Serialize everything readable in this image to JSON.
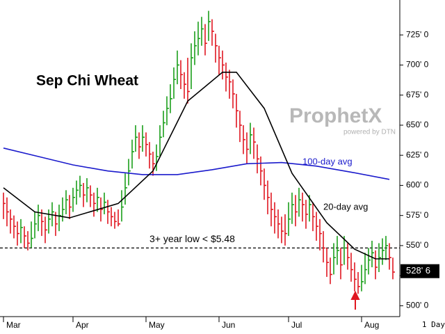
{
  "chart_data": {
    "type": "ohlc",
    "title": "Sep Chi Wheat",
    "xlim": [
      -1,
      114
    ],
    "xticks": [
      {
        "value": 0,
        "label": "Mar"
      },
      {
        "value": 20,
        "label": "Apr"
      },
      {
        "value": 41,
        "label": "May"
      },
      {
        "value": 62,
        "label": "Jun"
      },
      {
        "value": 82,
        "label": "Jul"
      },
      {
        "value": 103,
        "label": "Aug"
      }
    ],
    "ylim": [
      491,
      754
    ],
    "yticks": [
      {
        "value": 500,
        "label": "500' 0"
      },
      {
        "value": 525,
        "label": "525' 0"
      },
      {
        "value": 550,
        "label": "550' 0"
      },
      {
        "value": 575,
        "label": "575' 0"
      },
      {
        "value": 600,
        "label": "600' 0"
      },
      {
        "value": 625,
        "label": "625' 0"
      },
      {
        "value": 650,
        "label": "650' 0"
      },
      {
        "value": 675,
        "label": "675' 0"
      },
      {
        "value": 700,
        "label": "700' 0"
      },
      {
        "value": 725,
        "label": "725' 0"
      }
    ],
    "up_color": "#1a9e1a",
    "down_color": "#e01620",
    "high": [
      594,
      590,
      580,
      575,
      570,
      572,
      566,
      562,
      570,
      578,
      584,
      580,
      574,
      580,
      586,
      578,
      584,
      590,
      596,
      592,
      598,
      604,
      608,
      602,
      606,
      600,
      594,
      598,
      590,
      594,
      588,
      582,
      578,
      580,
      596,
      610,
      622,
      638,
      650,
      644,
      650,
      644,
      636,
      628,
      634,
      650,
      662,
      674,
      684,
      698,
      712,
      704,
      694,
      706,
      718,
      728,
      736,
      740,
      734,
      745,
      738,
      726,
      716,
      712,
      702,
      696,
      688,
      676,
      662,
      650,
      644,
      652,
      648,
      634,
      624,
      614,
      604,
      594,
      586,
      580,
      574,
      576,
      586,
      594,
      592,
      598,
      594,
      588,
      592,
      586,
      578,
      572,
      562,
      548,
      540,
      552,
      558,
      548,
      558,
      552,
      544,
      536,
      528,
      534,
      544,
      548,
      554,
      546,
      552,
      556,
      558,
      552,
      540
    ],
    "low": [
      572,
      566,
      560,
      556,
      550,
      552,
      548,
      546,
      548,
      556,
      562,
      558,
      552,
      560,
      566,
      558,
      562,
      570,
      576,
      572,
      578,
      584,
      590,
      582,
      586,
      582,
      574,
      578,
      570,
      576,
      568,
      566,
      564,
      566,
      570,
      584,
      600,
      614,
      628,
      622,
      628,
      624,
      614,
      608,
      612,
      624,
      640,
      650,
      660,
      672,
      684,
      680,
      672,
      668,
      680,
      700,
      708,
      716,
      708,
      720,
      716,
      702,
      692,
      688,
      678,
      672,
      664,
      648,
      636,
      626,
      618,
      626,
      622,
      610,
      600,
      588,
      576,
      566,
      560,
      556,
      552,
      550,
      558,
      568,
      566,
      574,
      570,
      564,
      570,
      562,
      554,
      546,
      536,
      524,
      518,
      526,
      534,
      522,
      534,
      530,
      520,
      512,
      510,
      512,
      518,
      526,
      532,
      522,
      528,
      534,
      538,
      530,
      522
    ],
    "close": [
      585,
      578,
      572,
      566,
      560,
      565,
      558,
      552,
      556,
      568,
      575,
      570,
      563,
      572,
      578,
      568,
      575,
      580,
      588,
      582,
      590,
      596,
      600,
      592,
      598,
      592,
      585,
      590,
      580,
      586,
      578,
      574,
      570,
      568,
      582,
      598,
      612,
      628,
      640,
      632,
      640,
      634,
      626,
      618,
      624,
      640,
      652,
      664,
      672,
      688,
      700,
      692,
      684,
      678,
      706,
      716,
      722,
      730,
      718,
      736,
      728,
      716,
      706,
      700,
      690,
      686,
      676,
      662,
      650,
      638,
      630,
      642,
      636,
      622,
      612,
      600,
      590,
      580,
      574,
      568,
      562,
      560,
      572,
      584,
      578,
      588,
      584,
      576,
      584,
      574,
      566,
      560,
      548,
      536,
      526,
      540,
      546,
      534,
      548,
      540,
      530,
      522,
      516,
      520,
      530,
      538,
      544,
      532,
      540,
      546,
      550,
      540,
      528
    ],
    "series": [
      {
        "name": "100-day avg",
        "color": "#1a1acc",
        "x": [
          0,
          10,
          20,
          30,
          40,
          50,
          60,
          70,
          80,
          90,
          100,
          111
        ],
        "values": [
          631,
          624,
          617,
          612,
          609,
          609,
          613,
          618,
          619,
          616,
          611,
          605
        ]
      },
      {
        "name": "20-day avg",
        "color": "#000000",
        "x": [
          0,
          9,
          19,
          33,
          43,
          53,
          63,
          67,
          75,
          83,
          93,
          101,
          107,
          111
        ],
        "values": [
          598,
          578,
          573,
          585,
          612,
          670,
          694,
          694,
          664,
          610,
          569,
          547,
          539,
          539
        ]
      }
    ],
    "reference_line": {
      "value": 548,
      "label": "3+ year low < $5.48"
    },
    "last_price": {
      "value": 528.75,
      "label": "528' 6"
    },
    "watermark": "ProphetX",
    "watermark_sub": "powered by DTN",
    "period": "1 Day"
  }
}
